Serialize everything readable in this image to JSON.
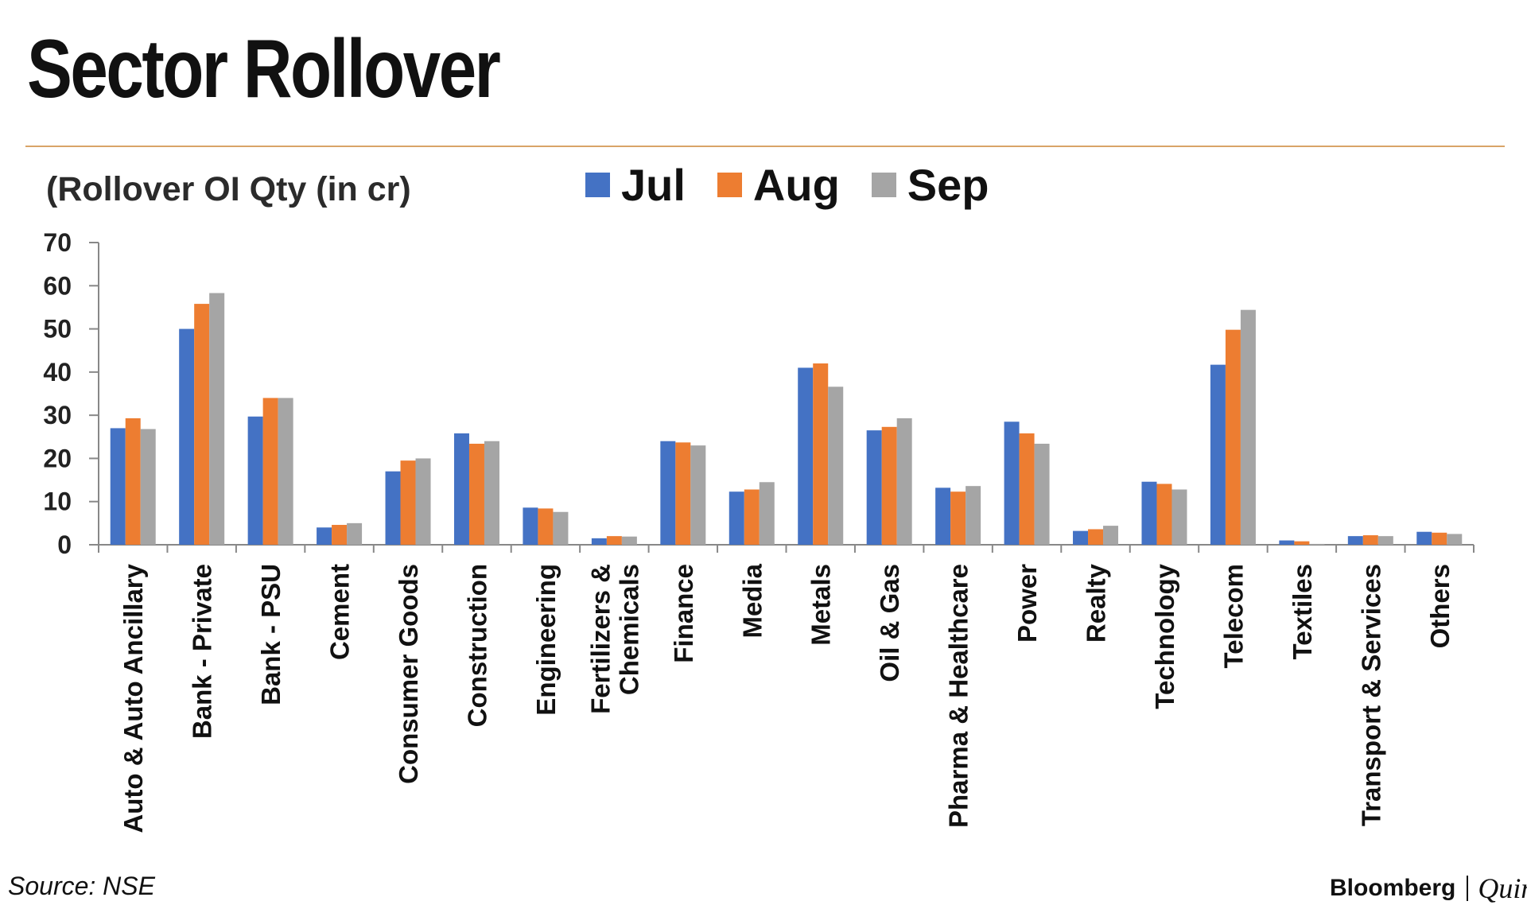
{
  "title": "Sector Rollover",
  "source": "Source: NSE",
  "brand": {
    "left": "Bloomberg",
    "right": "Quint"
  },
  "colors": {
    "jul": "#4472c4",
    "aug": "#ed7d31",
    "sep": "#a5a5a5",
    "rule": "#d9a468"
  },
  "chart_data": {
    "type": "bar",
    "title": "Sector Rollover",
    "ylabel": "(Rollover OI Qty (in cr)",
    "xlabel": "",
    "ylim": [
      0,
      70
    ],
    "yticks": [
      0,
      10,
      20,
      30,
      40,
      50,
      60,
      70
    ],
    "grid": false,
    "legend": "top-center",
    "categories": [
      "Auto & Auto Ancillary",
      "Bank - Private",
      "Bank - PSU",
      "Cement",
      "Consumer Goods",
      "Construction",
      "Engineering",
      "Fertilizers & Chemicals",
      "Finance",
      "Media",
      "Metals",
      "Oil & Gas",
      "Pharma & Healthcare",
      "Power",
      "Realty",
      "Technology",
      "Telecom",
      "Textiles",
      "Transport & Services",
      "Others"
    ],
    "series": [
      {
        "name": "Jul",
        "color": "#4472c4",
        "values": [
          27,
          50,
          29.7,
          4,
          17,
          25.8,
          8.6,
          1.5,
          24,
          12.3,
          41,
          26.5,
          13.2,
          28.5,
          3.2,
          14.6,
          41.7,
          1,
          2,
          3
        ]
      },
      {
        "name": "Aug",
        "color": "#ed7d31",
        "values": [
          29.3,
          55.8,
          34,
          4.6,
          19.5,
          23.4,
          8.4,
          2,
          23.7,
          12.8,
          42,
          27.3,
          12.3,
          25.8,
          3.6,
          14.1,
          49.8,
          0.8,
          2.2,
          2.8
        ]
      },
      {
        "name": "Sep",
        "color": "#a5a5a5",
        "values": [
          26.8,
          58.3,
          34,
          5,
          20,
          24,
          7.6,
          1.9,
          23,
          14.5,
          36.6,
          29.3,
          13.6,
          23.4,
          4.4,
          12.8,
          54.4,
          0.2,
          2,
          2.5
        ]
      }
    ]
  }
}
